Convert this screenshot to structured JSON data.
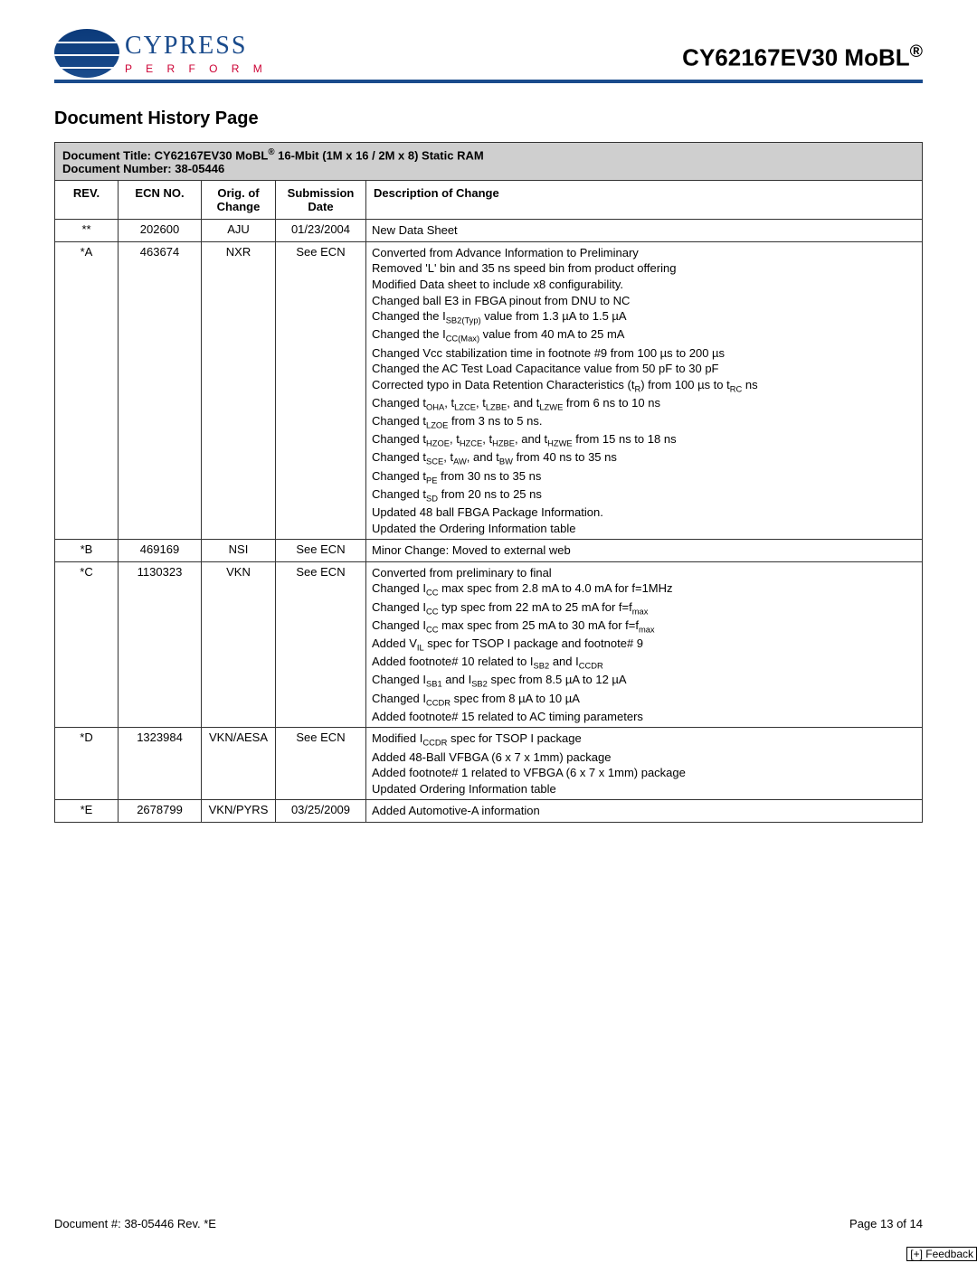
{
  "header": {
    "logo_name": "CYPRESS",
    "logo_tagline": "P E R F O R M",
    "product_title": "CY62167EV30 MoBL"
  },
  "section_title": "Document History Page",
  "table": {
    "title_line1": "Document Title: CY62167EV30 MoBL® 16-Mbit (1M x 16 / 2M x 8) Static RAM",
    "title_line2": "Document Number: 38-05446",
    "columns": [
      "REV.",
      "ECN NO.",
      "Orig. of Change",
      "Submission Date",
      "Description of Change"
    ],
    "rows": [
      {
        "rev": "**",
        "ecn": "202600",
        "orig": "AJU",
        "date": "01/23/2004",
        "changes": [
          "New Data Sheet"
        ]
      },
      {
        "rev": "*A",
        "ecn": "463674",
        "orig": "NXR",
        "date": "See ECN",
        "changes": [
          "Converted from Advance Information to Preliminary",
          "Removed 'L' bin and 35 ns speed bin from product offering",
          "Modified Data sheet to include x8 configurability.",
          "Changed ball E3 in FBGA pinout from DNU to NC",
          "Changed the I<sub>SB2(Typ)</sub> value from 1.3 µA to 1.5 µA",
          "Changed the I<sub>CC(Max)</sub> value from 40 mA to 25 mA",
          "Changed Vcc stabilization time in footnote #9 from 100 µs to 200 µs",
          "Changed the AC Test Load Capacitance value from 50 pF to 30 pF",
          "Corrected typo in Data Retention Characteristics (t<sub>R</sub>) from 100 µs to t<sub>RC</sub> ns",
          "Changed t<sub>OHA</sub>, t<sub>LZCE</sub>, t<sub>LZBE</sub>, and t<sub>LZWE</sub> from 6 ns to 10 ns",
          "Changed t<sub>LZOE</sub> from 3 ns to 5 ns.",
          "Changed t<sub>HZOE</sub>, t<sub>HZCE</sub>, t<sub>HZBE</sub>, and t<sub>HZWE</sub> from 15 ns to 18 ns",
          "Changed t<sub>SCE</sub>, t<sub>AW</sub>, and t<sub>BW</sub> from 40 ns to 35 ns",
          "Changed t<sub>PE</sub> from 30 ns to 35 ns",
          "Changed t<sub>SD</sub> from 20 ns to 25 ns",
          "Updated 48 ball FBGA Package Information.",
          "Updated the Ordering Information table"
        ]
      },
      {
        "rev": "*B",
        "ecn": "469169",
        "orig": "NSI",
        "date": "See ECN",
        "changes": [
          "Minor Change: Moved to external web"
        ]
      },
      {
        "rev": "*C",
        "ecn": "1130323",
        "orig": "VKN",
        "date": "See ECN",
        "changes": [
          "Converted from preliminary to final",
          "Changed I<sub>CC</sub> max spec from 2.8 mA to 4.0 mA for f=1MHz",
          "Changed I<sub>CC</sub> typ spec from 22 mA to 25 mA for f=f<sub>max</sub>",
          "Changed I<sub>CC</sub> max spec from 25 mA to 30 mA for f=f<sub>max</sub>",
          "Added V<sub>IL</sub> spec for TSOP I package and footnote# 9",
          "Added footnote# 10 related to I<sub>SB2</sub> and I<sub>CCDR</sub>",
          "Changed I<sub>SB1</sub> and I<sub>SB2</sub> spec from 8.5 µA to 12 µA",
          "Changed I<sub>CCDR</sub> spec from 8 µA to 10 µA",
          "Added footnote# 15 related to AC timing parameters"
        ]
      },
      {
        "rev": "*D",
        "ecn": "1323984",
        "orig": "VKN/AESA",
        "date": "See ECN",
        "changes": [
          "Modified I<sub>CCDR</sub> spec for TSOP I package",
          "Added 48-Ball VFBGA (6 x 7 x 1mm) package",
          "Added footnote# 1 related to VFBGA (6 x 7 x 1mm) package",
          "Updated Ordering Information table"
        ]
      },
      {
        "rev": "*E",
        "ecn": "2678799",
        "orig": "VKN/PYRS",
        "date": "03/25/2009",
        "changes": [
          "Added Automotive-A information"
        ]
      }
    ]
  },
  "footer": {
    "doc_number": "Document #: 38-05446 Rev. *E",
    "page": "Page 13 of 14",
    "feedback": "[+] Feedback"
  },
  "colors": {
    "header_rule": "#1a4b8c",
    "titlebar_bg": "#cfcfcf",
    "border": "#333333",
    "tagline": "#cc0033",
    "text": "#000000"
  }
}
